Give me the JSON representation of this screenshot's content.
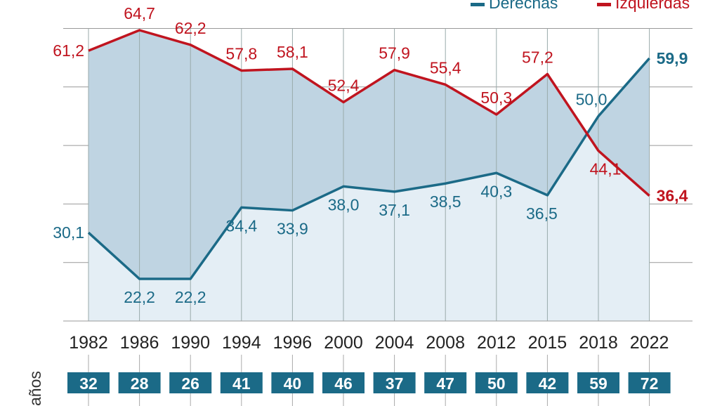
{
  "chart_data": {
    "type": "line",
    "categories": [
      "1982",
      "1986",
      "1990",
      "1994",
      "1996",
      "2000",
      "2004",
      "2008",
      "2012",
      "2015",
      "2018",
      "2022"
    ],
    "series": [
      {
        "name": "Derechas",
        "color": "#1b6a87",
        "values": [
          30.1,
          22.2,
          22.2,
          34.4,
          33.9,
          38.0,
          37.1,
          38.5,
          40.3,
          36.5,
          50.0,
          59.9
        ],
        "labels": [
          "30,1",
          "22,2",
          "22,2",
          "34,4",
          "33,9",
          "38,0",
          "37,1",
          "38,5",
          "40,3",
          "36,5",
          "50,0",
          "59,9"
        ]
      },
      {
        "name": "Izquierdas",
        "color": "#c0141f",
        "values": [
          61.2,
          64.7,
          62.2,
          57.8,
          58.1,
          52.4,
          57.9,
          55.4,
          50.3,
          57.2,
          44.1,
          36.4
        ],
        "labels": [
          "61,2",
          "64,7",
          "62,2",
          "57,8",
          "58,1",
          "52,4",
          "57,9",
          "55,4",
          "50,3",
          "57,2",
          "44,1",
          "36,4"
        ]
      }
    ],
    "ylim": [
      15,
      65
    ],
    "grid": true,
    "legend": "top-right",
    "fill_between_color": "#bfd4e2",
    "fill_below_color": "#e4eef5",
    "age_row": {
      "label": "años",
      "values": [
        "32",
        "28",
        "26",
        "41",
        "40",
        "46",
        "37",
        "47",
        "50",
        "42",
        "59",
        "72"
      ],
      "box_color": "#1b6a87"
    }
  }
}
